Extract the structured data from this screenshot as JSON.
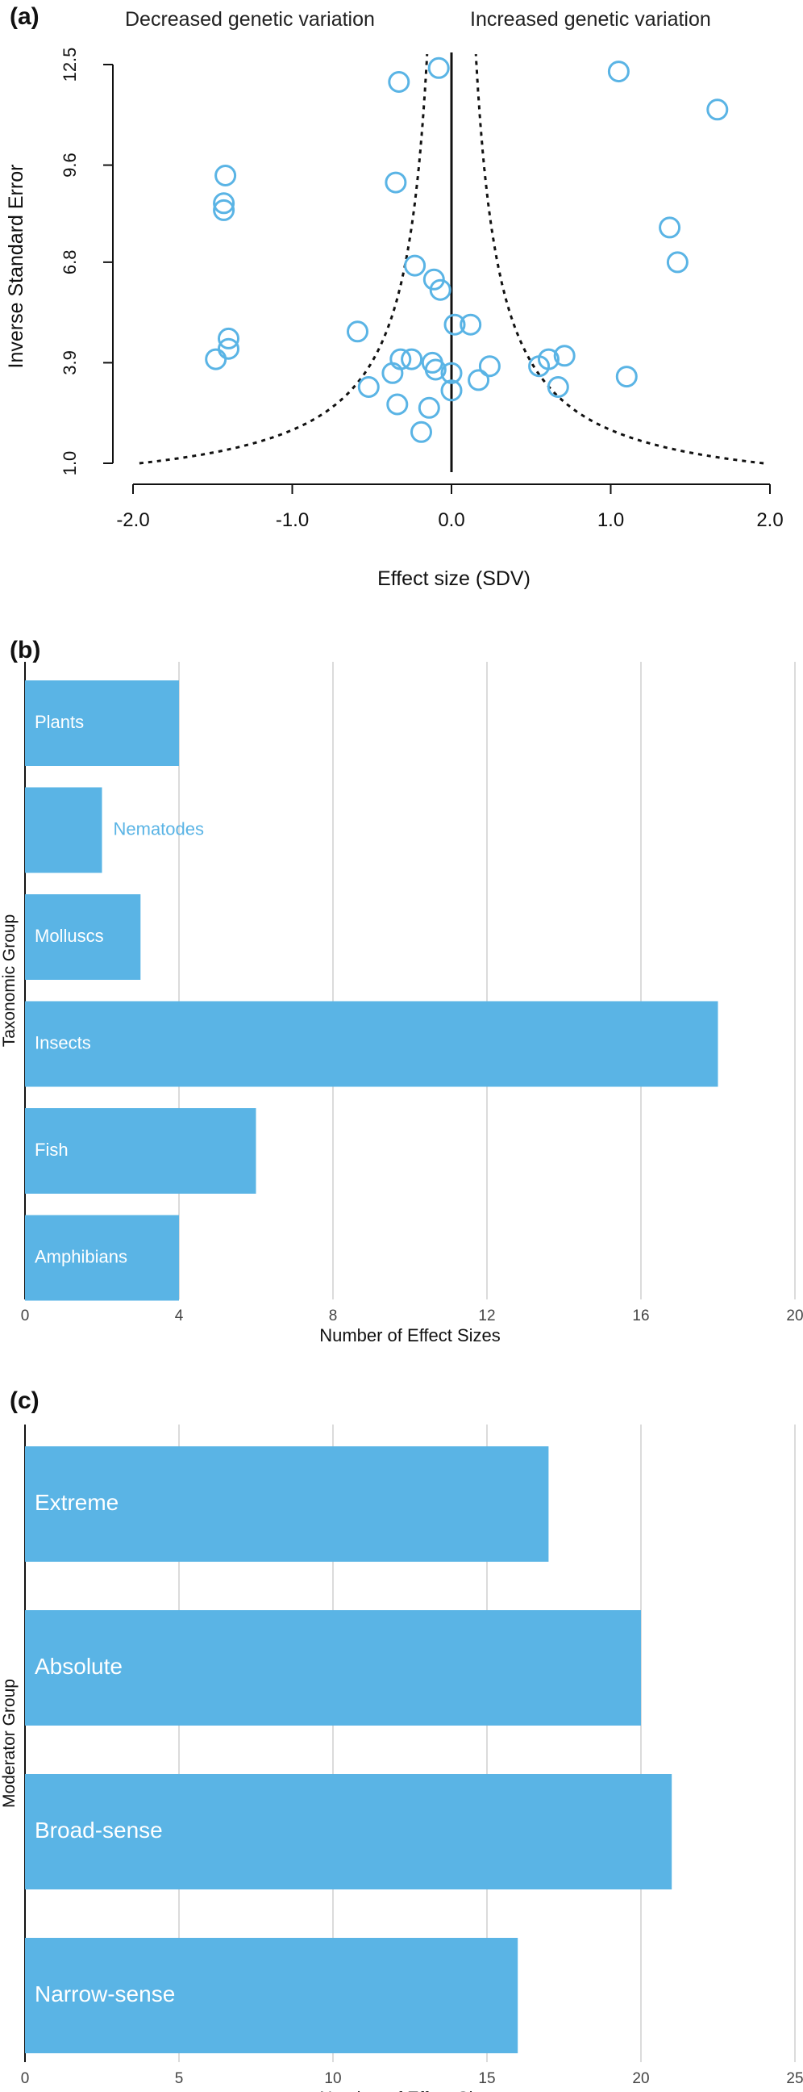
{
  "chart_data": [
    {
      "panel": "(a)",
      "type": "scatter",
      "title": "",
      "xlabel": "Effect size (SDV)",
      "ylabel": "Inverse Standard Error",
      "annotations": {
        "left": "Decreased genetic variation",
        "right": "Increased genetic variation"
      },
      "xlim": [
        -2.0,
        2.0
      ],
      "ylim": [
        1.0,
        12.5
      ],
      "xticks": [
        "-2.0",
        "-1.0",
        "0.0",
        "1.0",
        "2.0"
      ],
      "yticks": [
        "1.0",
        "3.9",
        "6.8",
        "9.6",
        "12.5"
      ],
      "funnel": {
        "center": 0,
        "shown": true
      },
      "marker_color": "#5AB4E5",
      "points": [
        {
          "x": -1.42,
          "y": 9.3
        },
        {
          "x": -1.43,
          "y": 8.5
        },
        {
          "x": -1.43,
          "y": 8.3
        },
        {
          "x": -1.4,
          "y": 4.6
        },
        {
          "x": -1.4,
          "y": 4.3
        },
        {
          "x": -1.48,
          "y": 4.0
        },
        {
          "x": -0.33,
          "y": 12.0
        },
        {
          "x": -0.08,
          "y": 12.4
        },
        {
          "x": -0.35,
          "y": 9.1
        },
        {
          "x": -0.23,
          "y": 6.7
        },
        {
          "x": -0.11,
          "y": 6.3
        },
        {
          "x": -0.07,
          "y": 6.0
        },
        {
          "x": 0.02,
          "y": 5.0
        },
        {
          "x": 0.12,
          "y": 5.0
        },
        {
          "x": -0.59,
          "y": 4.8
        },
        {
          "x": -0.32,
          "y": 4.0
        },
        {
          "x": -0.25,
          "y": 4.0
        },
        {
          "x": -0.12,
          "y": 3.9
        },
        {
          "x": -0.1,
          "y": 3.7
        },
        {
          "x": 0.0,
          "y": 3.6
        },
        {
          "x": -0.37,
          "y": 3.6
        },
        {
          "x": -0.52,
          "y": 3.2
        },
        {
          "x": 0.0,
          "y": 3.1
        },
        {
          "x": 0.17,
          "y": 3.4
        },
        {
          "x": 0.24,
          "y": 3.8
        },
        {
          "x": -0.34,
          "y": 2.7
        },
        {
          "x": -0.14,
          "y": 2.6
        },
        {
          "x": -0.19,
          "y": 1.9
        },
        {
          "x": 0.55,
          "y": 3.8
        },
        {
          "x": 0.61,
          "y": 4.0
        },
        {
          "x": 0.71,
          "y": 4.1
        },
        {
          "x": 0.67,
          "y": 3.2
        },
        {
          "x": 1.05,
          "y": 12.3
        },
        {
          "x": 1.67,
          "y": 11.2
        },
        {
          "x": 1.37,
          "y": 7.8
        },
        {
          "x": 1.42,
          "y": 6.8
        },
        {
          "x": 1.1,
          "y": 3.5
        }
      ]
    },
    {
      "panel": "(b)",
      "type": "bar",
      "orientation": "horizontal",
      "title": "",
      "xlabel": "Number of Effect Sizes",
      "ylabel": "Taxonomic Group",
      "xlim": [
        0,
        20
      ],
      "xticks": [
        "0",
        "4",
        "8",
        "12",
        "16",
        "20"
      ],
      "grid": true,
      "bar_color": "#5AB4E5",
      "categories": [
        "Plants",
        "Nematodes",
        "Molluscs",
        "Insects",
        "Fish",
        "Amphibians"
      ],
      "values": [
        4,
        2,
        3,
        18,
        6,
        4
      ]
    },
    {
      "panel": "(c)",
      "type": "bar",
      "orientation": "horizontal",
      "title": "",
      "xlabel": "Number of Effect Sizes",
      "ylabel": "Moderator Group",
      "xlim": [
        0,
        25
      ],
      "xticks": [
        "0",
        "5",
        "10",
        "15",
        "20",
        "25"
      ],
      "grid": true,
      "bar_color": "#5AB4E5",
      "categories": [
        "Extreme",
        "Absolute",
        "Broad-sense",
        "Narrow-sense"
      ],
      "values": [
        17,
        20,
        21,
        16
      ]
    }
  ]
}
